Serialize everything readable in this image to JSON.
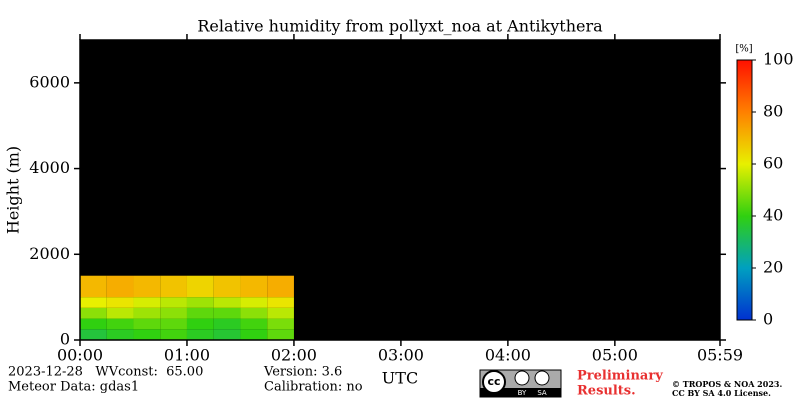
{
  "chart_data": {
    "type": "heatmap",
    "title": "Relative humidity from pollyxt_noa at Antikythera",
    "x_label": "UTC",
    "y_label": "Height (m)",
    "xlim": [
      0,
      5.983
    ],
    "xticks": [
      {
        "value": 0,
        "label": "00:00"
      },
      {
        "value": 1,
        "label": "01:00"
      },
      {
        "value": 2,
        "label": "02:00"
      },
      {
        "value": 3,
        "label": "03:00"
      },
      {
        "value": 4,
        "label": "04:00"
      },
      {
        "value": 5,
        "label": "05:00"
      },
      {
        "value": 5.983,
        "label": "05:59"
      }
    ],
    "ylim": [
      0,
      7000
    ],
    "yticks": [
      0,
      2000,
      4000,
      6000
    ],
    "x_bins": [
      0,
      0.25,
      0.5,
      0.75,
      1,
      1.25,
      1.5,
      1.75,
      2
    ],
    "y_bins": [
      0,
      250,
      500,
      750,
      1000,
      1500
    ],
    "z": [
      [
        35,
        38,
        40,
        42,
        38,
        36,
        40,
        45
      ],
      [
        40,
        42,
        45,
        45,
        40,
        38,
        42,
        48
      ],
      [
        50,
        55,
        52,
        50,
        45,
        45,
        50,
        55
      ],
      [
        60,
        62,
        58,
        55,
        52,
        55,
        58,
        62
      ],
      [
        70,
        72,
        70,
        68,
        65,
        68,
        70,
        72
      ]
    ],
    "colorbar": {
      "label": "[%]",
      "clim": [
        0,
        100
      ],
      "ticks": [
        0,
        20,
        40,
        60,
        80,
        100
      ],
      "colormap": [
        "#0030d0",
        "#00a0c0",
        "#30d010",
        "#e8f000",
        "#ff8000",
        "#ff1000"
      ]
    },
    "background": "#000000",
    "footer": {
      "date_line": "2023-12-28   WVconst:  65.00",
      "meteor": "Meteor Data: gdas1",
      "version": "Version: 3.6",
      "calibration": "Calibration: no",
      "preliminary": [
        "Preliminary",
        "Results."
      ],
      "copyright": [
        "© TROPOS & NOA 2023.",
        "CC BY SA 4.0 License."
      ],
      "badge": [
        "cc",
        "BY",
        "SA"
      ]
    }
  }
}
